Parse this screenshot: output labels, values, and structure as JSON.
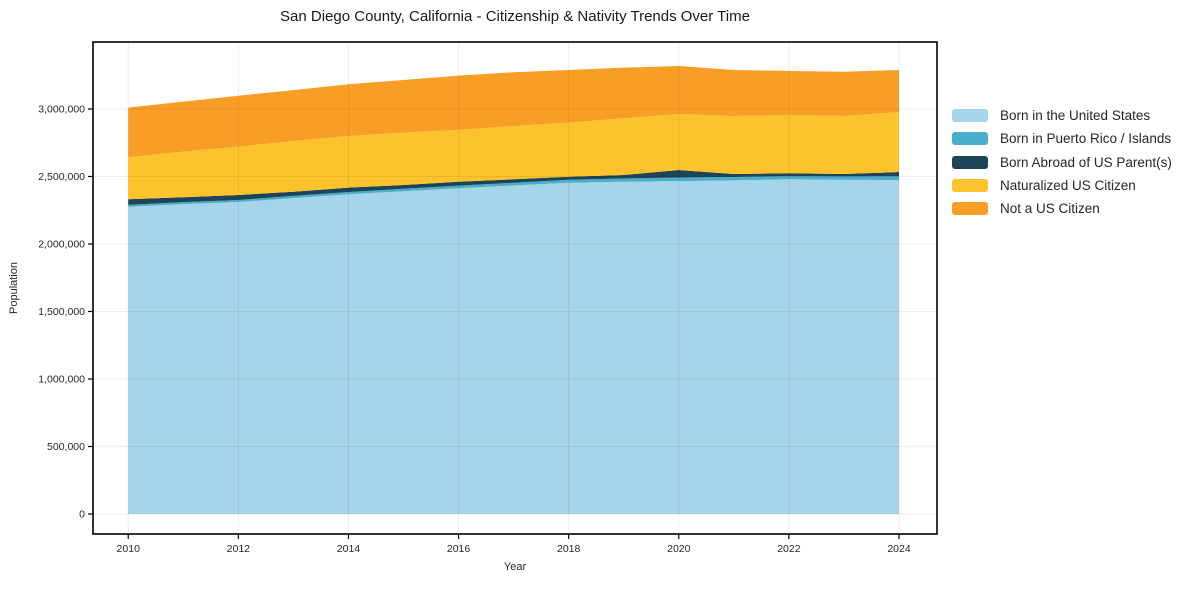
{
  "chart_data": {
    "type": "area",
    "stacked": true,
    "title": "San Diego County, California - Citizenship & Nativity Trends Over Time",
    "xlabel": "Year",
    "ylabel": "Population",
    "grid": true,
    "legend_position": "right",
    "x": [
      2010,
      2011,
      2012,
      2013,
      2014,
      2015,
      2016,
      2017,
      2018,
      2019,
      2020,
      2021,
      2022,
      2023,
      2024
    ],
    "series": [
      {
        "name": "Born in the United States",
        "color": "#a6d4e8",
        "values": [
          2276000,
          2295000,
          2311000,
          2340000,
          2368000,
          2391000,
          2413000,
          2433000,
          2454000,
          2461000,
          2466000,
          2471000,
          2479000,
          2475000,
          2474000
        ]
      },
      {
        "name": "Born in Puerto Rico / Islands",
        "color": "#4aadca",
        "values": [
          14000,
          15000,
          15000,
          16000,
          17000,
          18000,
          19000,
          21000,
          22000,
          24000,
          26000,
          25000,
          24000,
          26000,
          28000
        ]
      },
      {
        "name": "Born Abroad of US Parent(s)",
        "color": "#1d4457",
        "values": [
          41000,
          36000,
          37000,
          31000,
          32000,
          28000,
          29000,
          25000,
          22000,
          26000,
          56000,
          22000,
          21000,
          17000,
          31000
        ]
      },
      {
        "name": "Naturalized US Citizen",
        "color": "#fcc32d",
        "values": [
          311000,
          338000,
          358000,
          376000,
          383000,
          388000,
          384000,
          395000,
          401000,
          420000,
          415000,
          430000,
          432000,
          430000,
          444000
        ]
      },
      {
        "name": "Not a US Citizen",
        "color": "#f89e27",
        "values": [
          368000,
          370000,
          377000,
          377000,
          383000,
          390000,
          402000,
          398000,
          390000,
          375000,
          355000,
          341000,
          325000,
          328000,
          312000
        ]
      }
    ],
    "x_ticks": [
      2010,
      2012,
      2014,
      2016,
      2018,
      2020,
      2022,
      2024
    ],
    "x_tick_labels": [
      "2010",
      "2012",
      "2014",
      "2016",
      "2018",
      "2020",
      "2022",
      "2024"
    ],
    "y_ticks": [
      0,
      500000,
      1000000,
      1500000,
      2000000,
      2500000,
      3000000
    ],
    "y_tick_labels": [
      "0",
      "500,000",
      "1,000,000",
      "1,500,000",
      "2,000,000",
      "2,500,000",
      "3,000,000"
    ],
    "xlim": [
      2009.36,
      2024.69
    ],
    "ylim": [
      -148000,
      3496000
    ]
  }
}
